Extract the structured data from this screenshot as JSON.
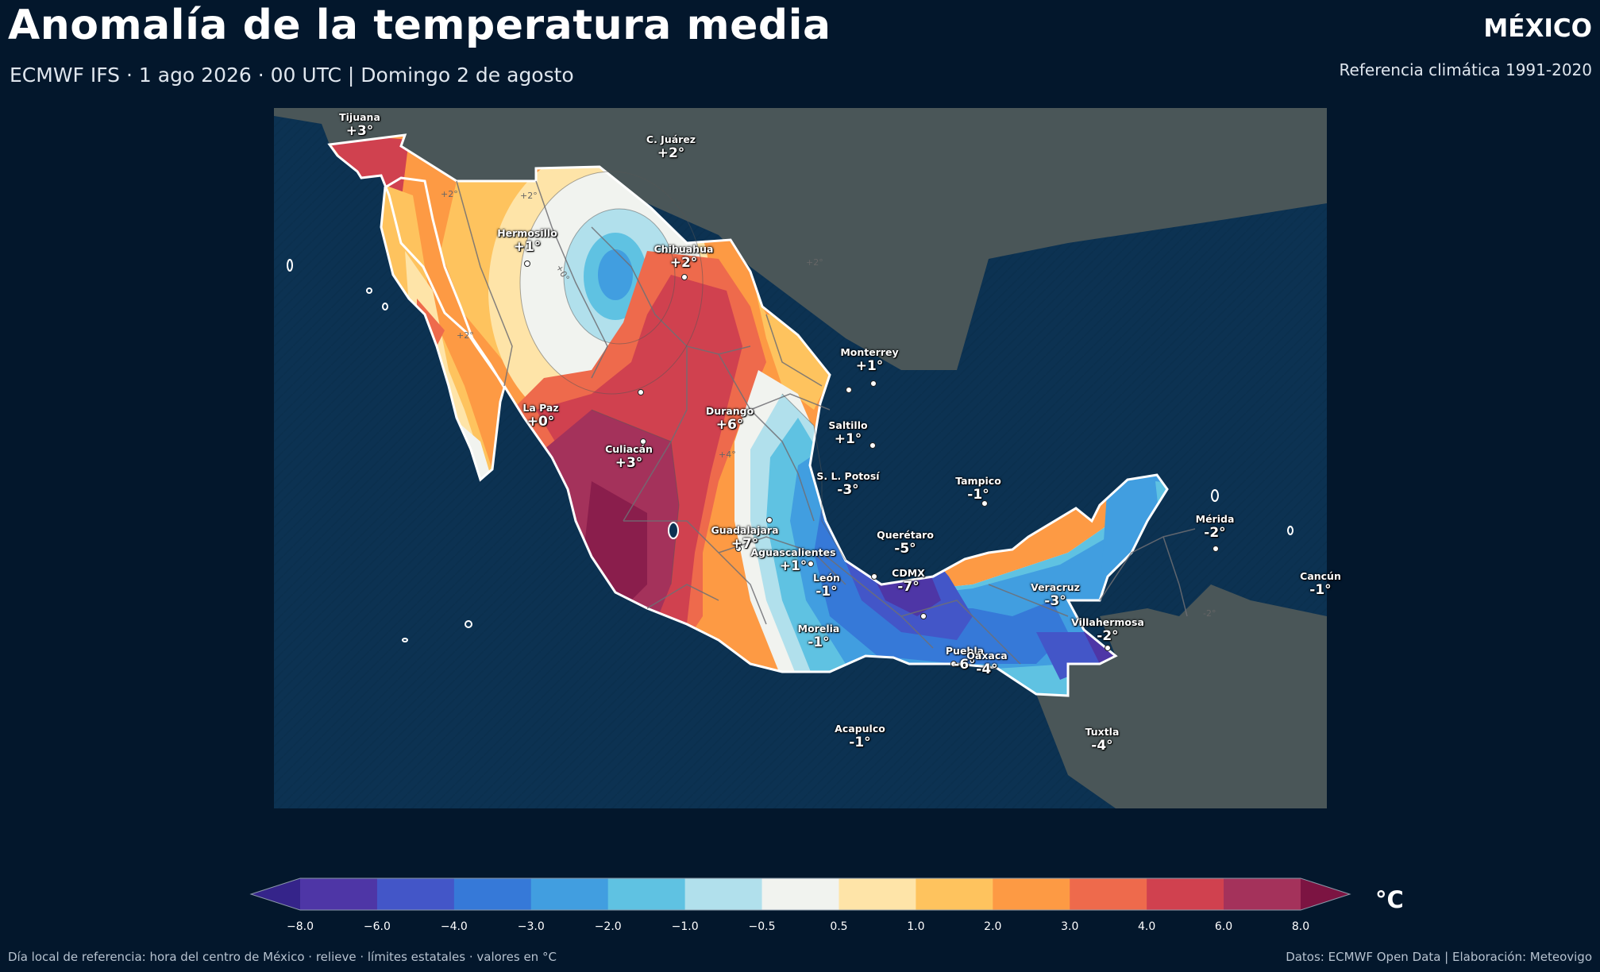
{
  "header": {
    "title": "Anomalía de la temperatura media",
    "subtitle": "ECMWF IFS · 1 ago 2026 · 00 UTC  |  Domingo 2 de agosto",
    "country": "MÉXICO",
    "reference": "Referencia climática 1991-2020"
  },
  "map": {
    "cities": [
      {
        "name": "Tijuana",
        "value": "+3°"
      },
      {
        "name": "C. Juárez",
        "value": "+2°"
      },
      {
        "name": "Hermosillo",
        "value": "+1°"
      },
      {
        "name": "Chihuahua",
        "value": "+2°"
      },
      {
        "name": "Monterrey",
        "value": "+1°"
      },
      {
        "name": "La Paz",
        "value": "+0°"
      },
      {
        "name": "Durango",
        "value": "+6°"
      },
      {
        "name": "Saltillo",
        "value": "+1°"
      },
      {
        "name": "Culiacán",
        "value": "+3°"
      },
      {
        "name": "Tampico",
        "value": "-1°"
      },
      {
        "name": "S. L. Potosí",
        "value": "-3°"
      },
      {
        "name": "Mérida",
        "value": "-2°"
      },
      {
        "name": "Guadalajara",
        "value": "+7°"
      },
      {
        "name": "Querétaro",
        "value": "-5°"
      },
      {
        "name": "Aguascalientes",
        "value": "+1°"
      },
      {
        "name": "Cancún",
        "value": "-1°"
      },
      {
        "name": "CDMX",
        "value": "-7°"
      },
      {
        "name": "León",
        "value": "-1°"
      },
      {
        "name": "Veracruz",
        "value": "-3°"
      },
      {
        "name": "Villahermosa",
        "value": "-2°"
      },
      {
        "name": "Morelia",
        "value": "-1°"
      },
      {
        "name": "Puebla",
        "value": "-6°"
      },
      {
        "name": "Oaxaca",
        "value": "-4°"
      },
      {
        "name": "Acapulco",
        "value": "-1°"
      },
      {
        "name": "Tuxtla",
        "value": "-4°"
      }
    ],
    "contour_labels": [
      "+2°",
      "+2°",
      "+0°",
      "+2°",
      "+2°",
      "+4°",
      "-2°"
    ]
  },
  "legend": {
    "unit": "°C",
    "ticks": [
      "−8.0",
      "−6.0",
      "−4.0",
      "−3.0",
      "−2.0",
      "−1.0",
      "−0.5",
      "0.5",
      "1.0",
      "2.0",
      "3.0",
      "4.0",
      "6.0",
      "8.0"
    ],
    "colors": {
      "under": "#35248a",
      "over": "#7c1442",
      "bins": [
        "#4e36a6",
        "#4356c8",
        "#3679d8",
        "#419ee0",
        "#5fc2e2",
        "#b1e0ec",
        "#f1f3ef",
        "#fee4a8",
        "#fec35e",
        "#fd9a44",
        "#ee6a4c",
        "#d0414f",
        "#a4325b"
      ]
    }
  },
  "footer": {
    "left": "Día local de referencia: hora del centro de México · relieve · límites estatales · valores en °C",
    "right": "Datos: ECMWF Open Data | Elaboración: Meteovigo"
  }
}
